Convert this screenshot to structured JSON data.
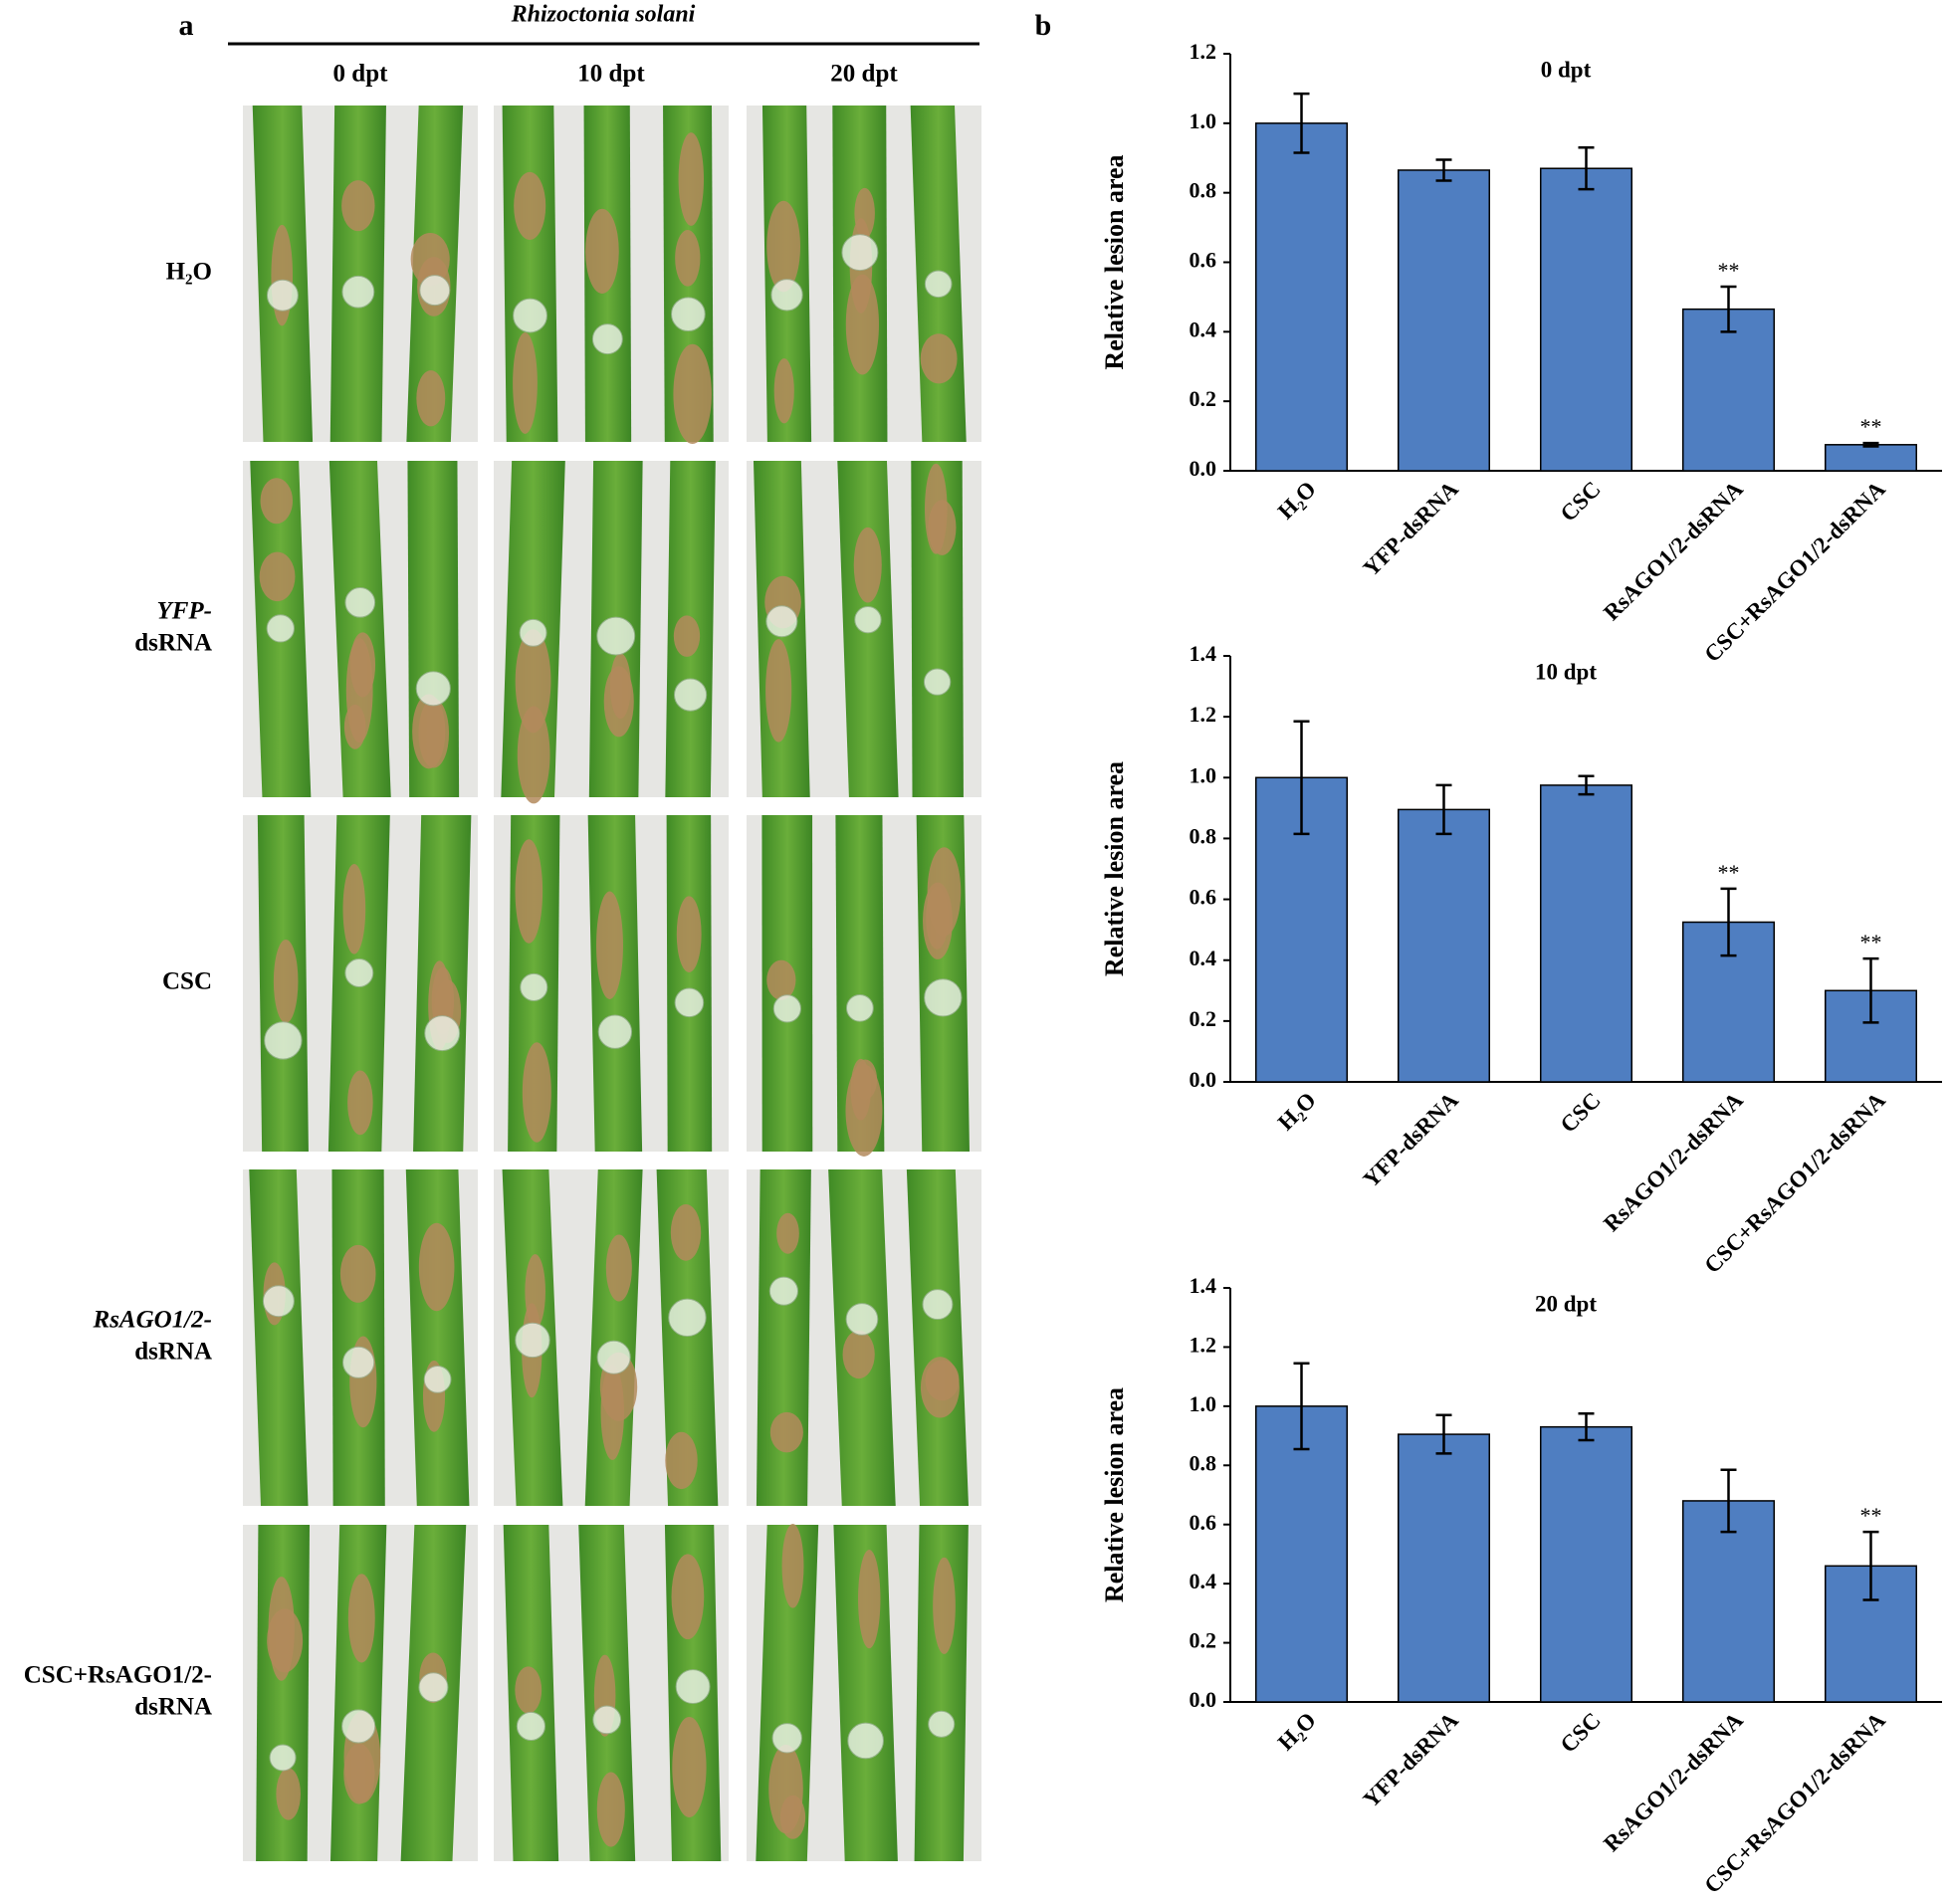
{
  "panel_labels": [
    "a",
    "b"
  ],
  "panel_a": {
    "title": "Rhizoctonia solani",
    "columns": [
      "0 dpt",
      "10 dpt",
      "20 dpt"
    ],
    "row_labels": [
      [
        "H₂O"
      ],
      [
        "YFP-",
        "dsRNA"
      ],
      [
        "CSC"
      ],
      [
        "RsAGO1/2-",
        "dsRNA"
      ],
      [
        "CSC+RsAGO1/2-",
        "dsRNA"
      ]
    ]
  },
  "chart_data": [
    {
      "type": "bar",
      "title": "0 dpt",
      "y_label": "Relative lesion area",
      "categories": [
        "H₂O",
        "YFP-dsRNA",
        "CSC",
        "RsAGO1/2-dsRNA",
        "CSC+RsAGO1/2-dsRNA"
      ],
      "values": [
        1.0,
        0.865,
        0.87,
        0.465,
        0.075
      ],
      "errors": [
        0.085,
        0.03,
        0.06,
        0.065,
        0.005
      ],
      "annotations": [
        {
          "index": 3,
          "text": "**"
        },
        {
          "index": 4,
          "text": "**"
        }
      ],
      "color": "#4f7ec1",
      "ylim": [
        0,
        1.2
      ],
      "yticks": [
        {
          "value": 0,
          "label": "0.0"
        },
        0.2,
        0.4,
        0.6,
        0.8,
        {
          "value": 1,
          "label": "1.0"
        },
        1.2
      ]
    },
    {
      "type": "bar",
      "title": "10 dpt",
      "y_label": "Relative lesion area",
      "categories": [
        "H₂O",
        "YFP-dsRNA",
        "CSC",
        "RsAGO1/2-dsRNA",
        "CSC+RsAGO1/2-dsRNA"
      ],
      "values": [
        1.0,
        0.895,
        0.975,
        0.525,
        0.3
      ],
      "errors": [
        0.185,
        0.08,
        0.03,
        0.11,
        0.105
      ],
      "annotations": [
        {
          "index": 3,
          "text": "**"
        },
        {
          "index": 4,
          "text": "**"
        }
      ],
      "color": "#4f7ec1",
      "ylim": [
        0,
        1.4
      ],
      "yticks": [
        {
          "value": 0,
          "label": "0.0"
        },
        0.2,
        0.4,
        0.6,
        0.8,
        {
          "value": 1,
          "label": "1.0"
        },
        1.2,
        1.4
      ]
    },
    {
      "type": "bar",
      "title": "20 dpt",
      "y_label": "Relative lesion area",
      "categories": [
        "H₂O",
        "YFP-dsRNA",
        "CSC",
        "RsAGO1/2-dsRNA",
        "CSC+RsAGO1/2-dsRNA"
      ],
      "values": [
        1.0,
        0.905,
        0.93,
        0.68,
        0.46
      ],
      "errors": [
        0.145,
        0.065,
        0.045,
        0.105,
        0.115
      ],
      "annotations": [
        {
          "index": 4,
          "text": "**"
        }
      ],
      "color": "#4f7ec1",
      "ylim": [
        0,
        1.4
      ],
      "yticks": [
        {
          "value": 0,
          "label": "0.0"
        },
        0.2,
        0.4,
        0.6,
        0.8,
        {
          "value": 1,
          "label": "1.0"
        },
        1.2,
        1.4
      ]
    }
  ]
}
